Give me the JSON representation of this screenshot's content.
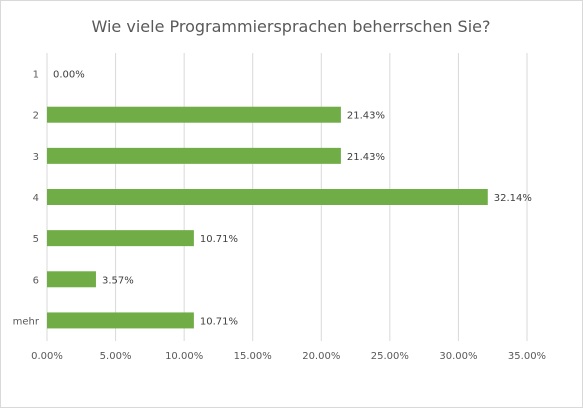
{
  "chart_data": {
    "type": "bar",
    "orientation": "horizontal",
    "title": "Wie viele Programmiersprachen beherrschen Sie?",
    "categories": [
      "1",
      "2",
      "3",
      "4",
      "5",
      "6",
      "mehr"
    ],
    "values": [
      0.0,
      21.43,
      21.43,
      32.14,
      10.71,
      3.57,
      10.71
    ],
    "data_labels": [
      "0.00%",
      "21.43%",
      "21.43%",
      "32.14%",
      "10.71%",
      "3.57%",
      "10.71%"
    ],
    "xlim": [
      0,
      35
    ],
    "x_ticks": [
      0,
      5,
      10,
      15,
      20,
      25,
      30,
      35
    ],
    "x_tick_labels": [
      "0.00%",
      "5.00%",
      "10.00%",
      "15.00%",
      "20.00%",
      "25.00%",
      "30.00%",
      "35.00%"
    ],
    "xlabel": "",
    "ylabel": "",
    "grid": "vertical",
    "legend": "none",
    "bar_color": "#70ad47",
    "grid_color": "#d9d9d9",
    "text_color": "#595959"
  }
}
